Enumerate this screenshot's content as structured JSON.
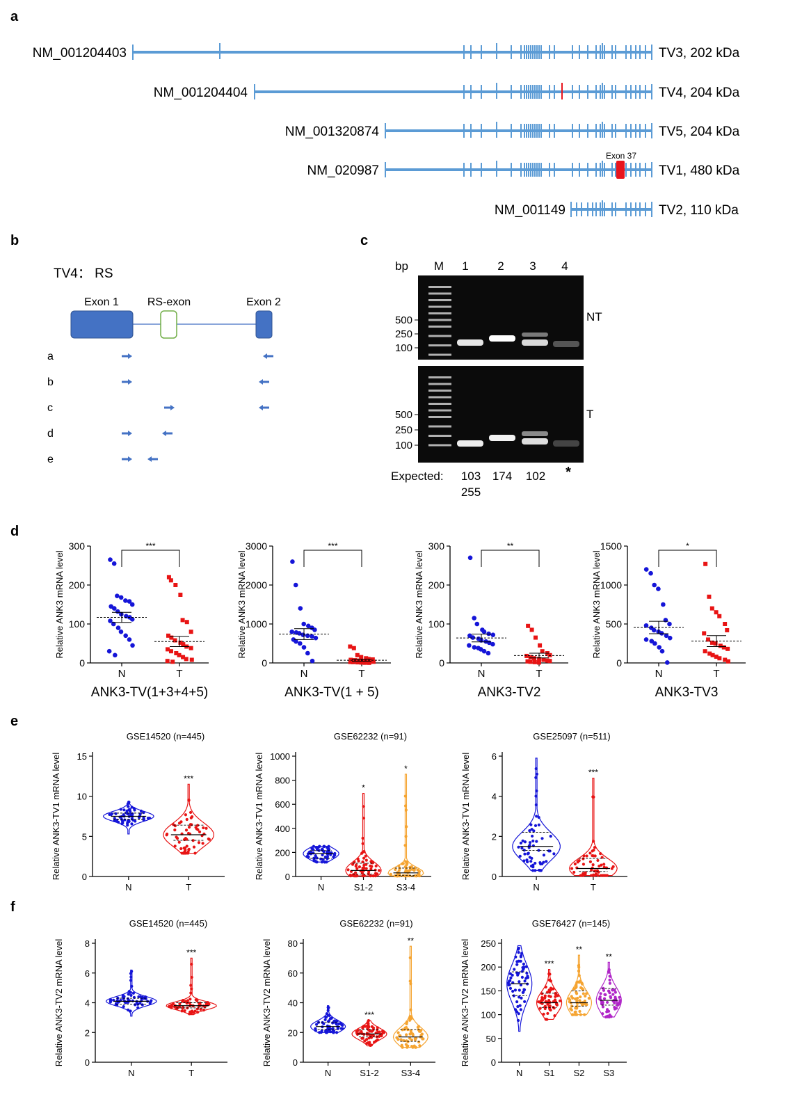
{
  "panel_letters": [
    "a",
    "b",
    "c",
    "d",
    "e",
    "f"
  ],
  "panel_a": {
    "transcripts": [
      {
        "accession": "NM_001204403",
        "label": "TV3, 202 kDa"
      },
      {
        "accession": "NM_001204404",
        "label": "TV4, 204 kDa"
      },
      {
        "accession": "NM_001320874",
        "label": "TV5, 204 kDa"
      },
      {
        "accession": "NM_020987",
        "label": "TV1, 480 kDa"
      },
      {
        "accession": "NM_001149",
        "label": "TV2, 110 kDa"
      }
    ],
    "exon_label": "Exon 37",
    "colors": {
      "exon": "#5b9bd5",
      "highlight": "#e8141c"
    }
  },
  "panel_b": {
    "title": "TV4： RS",
    "exon1": "Exon 1",
    "rs_exon": "RS-exon",
    "exon2": "Exon 2",
    "primer_rows": [
      "a",
      "b",
      "c",
      "d",
      "e"
    ]
  },
  "panel_c": {
    "bp": "bp",
    "marker": "M",
    "lanes": [
      "1",
      "2",
      "3",
      "4"
    ],
    "ladder": [
      "500",
      "250",
      "100"
    ],
    "gel_labels": [
      "NT",
      "T"
    ],
    "expected_label": "Expected:",
    "expected": [
      "103",
      "174",
      "102",
      "*"
    ],
    "expected_2": "255"
  },
  "panel_d": {
    "ylabel": "Relative ANK3 mRNA level",
    "xticks": [
      "N",
      "T"
    ],
    "charts": [
      {
        "title": "ANK3-TV(1+3+4+5)",
        "sig": "***",
        "yticks": [
          "0",
          "100",
          "200",
          "300"
        ],
        "ymax": 300,
        "N": {
          "mean": 117,
          "sem": 13,
          "points": [
            265,
            255,
            172,
            168,
            160,
            158,
            150,
            145,
            140,
            132,
            125,
            120,
            117,
            112,
            108,
            100,
            90,
            80,
            70,
            60,
            45,
            30,
            20
          ]
        },
        "T": {
          "mean": 55,
          "sem": 13,
          "points": [
            220,
            212,
            200,
            175,
            110,
            105,
            80,
            70,
            65,
            58,
            52,
            48,
            42,
            38,
            35,
            30,
            25,
            20,
            15,
            10,
            8,
            5,
            3
          ]
        }
      },
      {
        "title": "ANK3-TV(1 + 5)",
        "sig": "***",
        "yticks": [
          "0",
          "1000",
          "2000",
          "3000"
        ],
        "ymax": 3000,
        "N": {
          "mean": 740,
          "sem": 140,
          "points": [
            2600,
            2000,
            1400,
            1000,
            950,
            900,
            850,
            800,
            780,
            760,
            720,
            700,
            680,
            640,
            600,
            550,
            500,
            400,
            250,
            50
          ]
        },
        "T": {
          "mean": 70,
          "sem": 25,
          "points": [
            420,
            380,
            200,
            150,
            120,
            100,
            90,
            80,
            70,
            60,
            50,
            40,
            35,
            30,
            25,
            20,
            15,
            10,
            5,
            3
          ]
        }
      },
      {
        "title": "ANK3-TV2",
        "sig": "**",
        "yticks": [
          "0",
          "100",
          "200",
          "300"
        ],
        "ymax": 300,
        "N": {
          "mean": 64,
          "sem": 10,
          "points": [
            270,
            115,
            100,
            85,
            80,
            75,
            72,
            70,
            65,
            62,
            58,
            55,
            52,
            48,
            45,
            40,
            38,
            35,
            30,
            25
          ]
        },
        "T": {
          "mean": 19,
          "sem": 6,
          "points": [
            95,
            85,
            65,
            45,
            30,
            25,
            20,
            18,
            15,
            12,
            10,
            8,
            6,
            5,
            4,
            3,
            2,
            1
          ]
        }
      },
      {
        "title": "ANK3-TV3",
        "sig": "*",
        "yticks": [
          "0",
          "500",
          "1000",
          "1500"
        ],
        "ymax": 1500,
        "N": {
          "mean": 455,
          "sem": 80,
          "points": [
            1200,
            1150,
            1000,
            950,
            750,
            550,
            500,
            480,
            450,
            420,
            400,
            380,
            350,
            320,
            300,
            280,
            250,
            200,
            150,
            5
          ]
        },
        "T": {
          "mean": 280,
          "sem": 70,
          "points": [
            1270,
            850,
            700,
            650,
            600,
            500,
            420,
            380,
            300,
            260,
            250,
            220,
            200,
            180,
            150,
            120,
            100,
            80,
            60,
            40,
            20
          ]
        }
      }
    ]
  },
  "panel_e": {
    "ylabel": "Relative ANK3-TV1 mRNA level",
    "charts": [
      {
        "title": "GSE14520 (n=445)",
        "yticks": [
          "0",
          "5",
          "10",
          "15"
        ],
        "ymax": 15,
        "groups": [
          {
            "name": "N",
            "color": "#1515d8",
            "min": 5.3,
            "max": 9.3,
            "median": 7.5,
            "q1": 7.1,
            "q3": 7.9,
            "sig": ""
          },
          {
            "name": "T",
            "color": "#e81414",
            "min": 2.9,
            "max": 11.5,
            "median": 5.2,
            "q1": 4.5,
            "q3": 6.4,
            "sig": "***"
          }
        ]
      },
      {
        "title": "GSE62232 (n=91)",
        "yticks": [
          "0",
          "200",
          "400",
          "600",
          "800",
          "1000"
        ],
        "ymax": 1000,
        "groups": [
          {
            "name": "N",
            "color": "#1515d8",
            "min": 120,
            "max": 250,
            "median": 190,
            "q1": 150,
            "q3": 215,
            "sig": ""
          },
          {
            "name": "S1-2",
            "color": "#e81414",
            "min": 5,
            "max": 690,
            "median": 50,
            "q1": 20,
            "q3": 110,
            "sig": "*"
          },
          {
            "name": "S3-4",
            "color": "#f5a431",
            "min": 5,
            "max": 850,
            "median": 30,
            "q1": 10,
            "q3": 70,
            "sig": "*"
          }
        ]
      },
      {
        "title": "GSE25097 (n=511)",
        "yticks": [
          "0",
          "2",
          "4",
          "6"
        ],
        "ymax": 6,
        "groups": [
          {
            "name": "N",
            "color": "#1515d8",
            "min": 0.3,
            "max": 5.9,
            "median": 1.5,
            "q1": 1.3,
            "q3": 2.2,
            "sig": ""
          },
          {
            "name": "T",
            "color": "#e81414",
            "min": 0.05,
            "max": 4.9,
            "median": 0.4,
            "q1": 0.25,
            "q3": 0.9,
            "sig": "***"
          }
        ]
      }
    ]
  },
  "panel_f": {
    "ylabel": "Relative ANK3-TV2 mRNA level",
    "charts": [
      {
        "title": "GSE14520 (n=445)",
        "yticks": [
          "0",
          "2",
          "4",
          "6",
          "8"
        ],
        "ymax": 8,
        "groups": [
          {
            "name": "N",
            "color": "#1515d8",
            "min": 3.1,
            "max": 6.2,
            "median": 4.1,
            "q1": 3.9,
            "q3": 4.3,
            "sig": ""
          },
          {
            "name": "T",
            "color": "#e81414",
            "min": 3.2,
            "max": 7.0,
            "median": 3.8,
            "q1": 3.65,
            "q3": 4.0,
            "sig": "***"
          }
        ]
      },
      {
        "title": "GSE62232 (n=91)",
        "yticks": [
          "0",
          "20",
          "40",
          "60",
          "80"
        ],
        "ymax": 80,
        "groups": [
          {
            "name": "N",
            "color": "#1515d8",
            "min": 20,
            "max": 38,
            "median": 24,
            "q1": 22,
            "q3": 27,
            "sig": ""
          },
          {
            "name": "S1-2",
            "color": "#e81414",
            "min": 11,
            "max": 28,
            "median": 19,
            "q1": 17,
            "q3": 22,
            "sig": "***"
          },
          {
            "name": "S3-4",
            "color": "#f5a431",
            "min": 10,
            "max": 78,
            "median": 17,
            "q1": 14,
            "q3": 22,
            "sig": "**"
          }
        ]
      },
      {
        "title": "GSE76427 (n=145)",
        "yticks": [
          "0",
          "50",
          "100",
          "150",
          "200",
          "250"
        ],
        "ymax": 250,
        "groups": [
          {
            "name": "N",
            "color": "#1515d8",
            "min": 65,
            "max": 245,
            "median": 165,
            "q1": 140,
            "q3": 190,
            "sig": ""
          },
          {
            "name": "S1",
            "color": "#e81414",
            "min": 90,
            "max": 195,
            "median": 125,
            "q1": 115,
            "q3": 145,
            "sig": "***"
          },
          {
            "name": "S2",
            "color": "#f5a431",
            "min": 100,
            "max": 225,
            "median": 125,
            "q1": 118,
            "q3": 150,
            "sig": "**"
          },
          {
            "name": "S3",
            "color": "#b026c8",
            "min": 95,
            "max": 210,
            "median": 130,
            "q1": 120,
            "q3": 155,
            "sig": "**"
          }
        ]
      }
    ]
  }
}
